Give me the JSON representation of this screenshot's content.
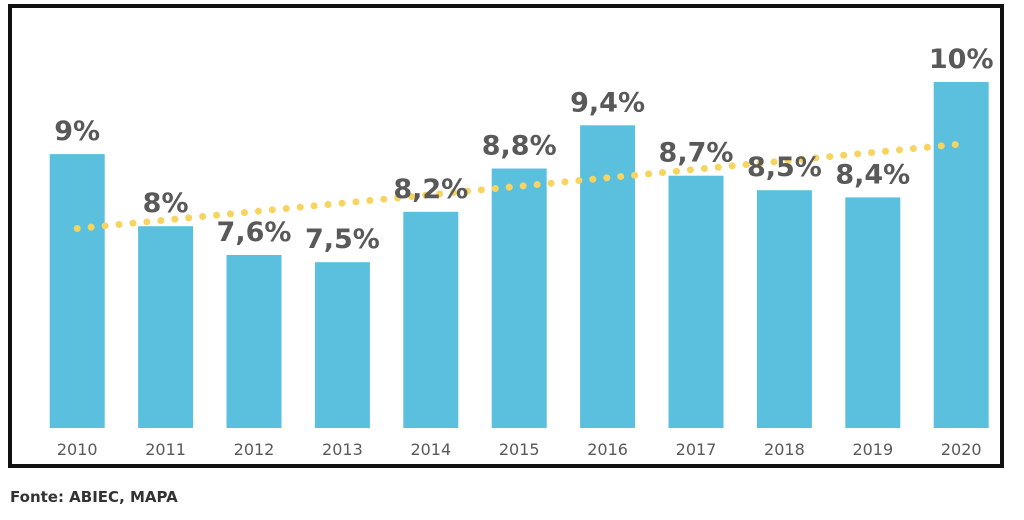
{
  "chart_data": {
    "type": "bar",
    "categories": [
      "2010",
      "2011",
      "2012",
      "2013",
      "2014",
      "2015",
      "2016",
      "2017",
      "2018",
      "2019",
      "2020"
    ],
    "values": [
      9,
      8,
      7.6,
      7.5,
      8.2,
      8.8,
      9.4,
      8.7,
      8.5,
      8.4,
      10
    ],
    "data_labels": [
      "9%",
      "8%",
      "7,6%",
      "7,5%",
      "8,2%",
      "8,8%",
      "9,4%",
      "8,7%",
      "8,5%",
      "8,4%",
      "10%"
    ],
    "trendline": "linear, dotted",
    "ylim": [
      5.2,
      10.5
    ],
    "grid": false,
    "legend": "none",
    "bar_color": "#5bc0de",
    "trend_color": "#f7d360",
    "label_color": "#595959"
  },
  "source": "Fonte: ABIEC, MAPA"
}
